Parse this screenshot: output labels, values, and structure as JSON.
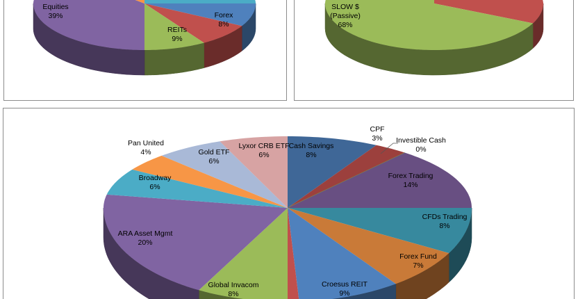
{
  "chart_data": [
    {
      "type": "pie",
      "style": "3d",
      "slices": [
        {
          "label": "",
          "value": 25,
          "color": "#4BACC6"
        },
        {
          "label": "",
          "value": 8,
          "color": "#4F81BD"
        },
        {
          "label": "Forex",
          "value": 8,
          "percent_label": "8%",
          "color": "#C0504D"
        },
        {
          "label": "REITs",
          "value": 9,
          "percent_label": "9%",
          "color": "#9BBB59"
        },
        {
          "label": "Equities",
          "value": 39,
          "percent_label": "39%",
          "color": "#8064A2"
        },
        {
          "label": "",
          "value": 11,
          "color": "#F79646"
        }
      ]
    },
    {
      "type": "pie",
      "style": "3d",
      "slices": [
        {
          "label": "",
          "value": 32,
          "color": "#C0504D"
        },
        {
          "label": "SLOW $",
          "label_line2": "(Passive)",
          "value": 68,
          "percent_label": "68%",
          "color": "#9BBB59"
        }
      ]
    },
    {
      "type": "pie",
      "style": "3d",
      "slices": [
        {
          "label": "Cash Savings",
          "value": 8,
          "percent_label": "8%",
          "color": "#3F6797"
        },
        {
          "label": "CPF",
          "value": 3,
          "percent_label": "3%",
          "color": "#9C403D"
        },
        {
          "label": "Investible Cash",
          "value": 0,
          "percent_label": "0%",
          "color": "#7D964A"
        },
        {
          "label": "Forex Trading",
          "value": 14,
          "percent_label": "14%",
          "color": "#684F82"
        },
        {
          "label": "CFDs Trading",
          "value": 8,
          "percent_label": "8%",
          "color": "#37899E"
        },
        {
          "label": "Forex Fund",
          "value": 7,
          "percent_label": "7%",
          "color": "#C97A38"
        },
        {
          "label": "Croesus REIT",
          "value": 9,
          "percent_label": "9%",
          "color": "#4F81BD"
        },
        {
          "label": "",
          "value": 1,
          "color": "#C0504D"
        },
        {
          "label": "Global Invacom",
          "value": 8,
          "percent_label": "8%",
          "color": "#9BBB59"
        },
        {
          "label": "ARA Asset Mgmt",
          "value": 20,
          "percent_label": "20%",
          "color": "#8064A2"
        },
        {
          "label": "Broadway",
          "value": 6,
          "percent_label": "6%",
          "color": "#4BACC6"
        },
        {
          "label": "Pan United",
          "value": 4,
          "percent_label": "4%",
          "color": "#F79646"
        },
        {
          "label": "Gold ETF",
          "value": 6,
          "percent_label": "6%",
          "color": "#A9B9D7"
        },
        {
          "label": "Lyxor CRB ETF",
          "value": 6,
          "percent_label": "6%",
          "color": "#D7A3A3"
        }
      ]
    }
  ]
}
